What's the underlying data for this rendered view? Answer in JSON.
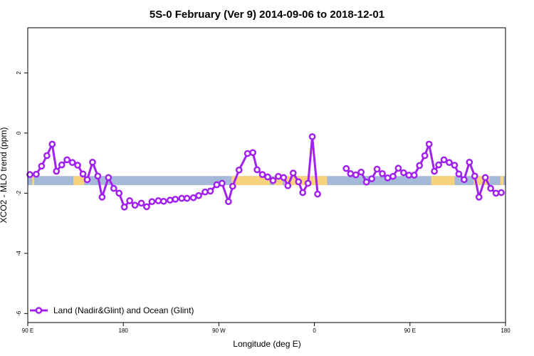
{
  "chart_data": {
    "type": "line",
    "title": "5S-0 February (Ver 9)   2014-09-06 to 2018-12-01",
    "xlabel": "Longitude (deg E)",
    "ylabel": "XCO2 - MLO trend (ppm)",
    "xlim": [
      90,
      540
    ],
    "ylim": [
      -6.3,
      3.5
    ],
    "x_ticks": [
      {
        "value": 90,
        "label": "90 E"
      },
      {
        "value": 180,
        "label": "180"
      },
      {
        "value": 270,
        "label": "90 W"
      },
      {
        "value": 360,
        "label": "0"
      },
      {
        "value": 450,
        "label": "90 E"
      },
      {
        "value": 540,
        "label": "180"
      }
    ],
    "y_ticks": [
      {
        "value": 2,
        "label": "2"
      },
      {
        "value": 0,
        "label": "0"
      },
      {
        "value": -2,
        "label": "-2"
      },
      {
        "value": -4,
        "label": "-4"
      },
      {
        "value": -6,
        "label": "-6"
      }
    ],
    "grid": false,
    "legend_position": "bottom-left",
    "band": {
      "ymin": -1.73,
      "ymax": -1.43,
      "ocean_color": "#a4b8d8",
      "land_color": "#f8d27c"
    },
    "land_segments": [
      [
        94,
        96
      ],
      [
        133,
        143
      ],
      [
        282,
        318
      ],
      [
        322,
        330
      ],
      [
        332,
        372
      ],
      [
        470,
        492
      ],
      [
        510,
        525
      ],
      [
        535,
        538
      ]
    ],
    "series": [
      {
        "name": "Land (Nadir&Glint) and Ocean (Glint)",
        "color": "#a020f0",
        "points": [
          [
            92,
            -1.38
          ],
          [
            98,
            -1.37
          ],
          [
            103,
            -1.1
          ],
          [
            108,
            -0.75
          ],
          [
            113,
            -0.37
          ],
          [
            117,
            -1.27
          ],
          [
            122,
            -1.06
          ],
          [
            127,
            -0.89
          ],
          [
            132,
            -0.98
          ],
          [
            137,
            -1.07
          ],
          [
            142,
            -1.36
          ],
          [
            146,
            -1.55
          ],
          [
            151,
            -0.97
          ],
          [
            156,
            -1.43
          ],
          [
            160,
            -2.13
          ],
          [
            166,
            -1.48
          ],
          [
            171,
            -1.84
          ],
          [
            176,
            -2.0
          ],
          [
            181,
            -2.46
          ],
          [
            186,
            -2.25
          ],
          [
            191,
            -2.4
          ],
          [
            197,
            -2.33
          ],
          [
            202,
            -2.45
          ],
          [
            207,
            -2.28
          ],
          [
            213,
            -2.25
          ],
          [
            218,
            -2.27
          ],
          [
            224,
            -2.23
          ],
          [
            229,
            -2.2
          ],
          [
            235,
            -2.17
          ],
          [
            240,
            -2.17
          ],
          [
            246,
            -2.15
          ],
          [
            251,
            -2.08
          ],
          [
            257,
            -1.96
          ],
          [
            262,
            -1.93
          ],
          [
            268,
            -1.72
          ],
          [
            273,
            -1.67
          ],
          [
            279,
            -2.28
          ],
          [
            283,
            -1.77
          ],
          [
            289,
            -1.23
          ],
          [
            297,
            -0.68
          ],
          [
            302,
            -0.65
          ],
          [
            306,
            -1.22
          ],
          [
            311,
            -1.38
          ],
          [
            316,
            -1.46
          ],
          [
            321,
            -1.58
          ],
          [
            326,
            -1.44
          ],
          [
            331,
            -1.48
          ],
          [
            335,
            -1.75
          ],
          [
            340,
            -1.33
          ],
          [
            345,
            -1.62
          ],
          [
            349,
            -1.98
          ],
          [
            354,
            -1.67
          ],
          [
            358,
            -0.12
          ],
          [
            363,
            -2.03
          ],
          [
            390,
            -1.18
          ],
          [
            394,
            -1.35
          ],
          [
            399,
            -1.39
          ],
          [
            404,
            -1.3
          ],
          [
            409,
            -1.63
          ],
          [
            414,
            -1.52
          ],
          [
            419,
            -1.2
          ],
          [
            424,
            -1.35
          ],
          [
            429,
            -1.49
          ],
          [
            434,
            -1.44
          ],
          [
            439,
            -1.17
          ],
          [
            444,
            -1.32
          ],
          [
            449,
            -1.4
          ],
          [
            454,
            -1.4
          ],
          [
            459,
            -1.08
          ],
          [
            464,
            -0.75
          ],
          [
            468,
            -0.37
          ],
          [
            473,
            -1.27
          ],
          [
            477,
            -1.06
          ],
          [
            482,
            -0.89
          ],
          [
            487,
            -0.98
          ],
          [
            492,
            -1.07
          ],
          [
            496,
            -1.36
          ],
          [
            501,
            -1.55
          ],
          [
            506,
            -0.97
          ],
          [
            511,
            -1.43
          ],
          [
            515,
            -2.13
          ],
          [
            521,
            -1.48
          ],
          [
            526,
            -1.84
          ],
          [
            531,
            -2.0
          ],
          [
            536,
            -1.98
          ]
        ]
      }
    ]
  }
}
